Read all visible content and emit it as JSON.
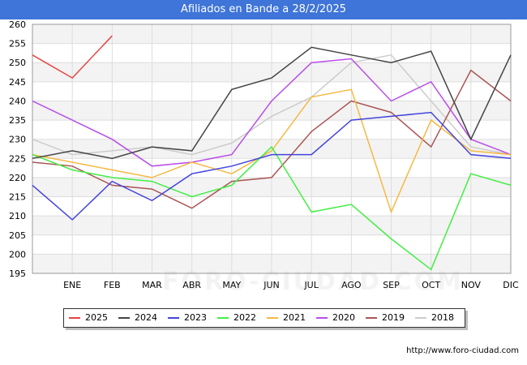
{
  "title": "Afiliados en Bande a 28/2/2025",
  "source": "http://www.foro-ciudad.com",
  "watermark": "FORO-CIUDAD.COM",
  "chart_data": {
    "type": "line",
    "title": "Afiliados en Bande a 28/2/2025",
    "xlabel": "",
    "ylabel": "",
    "categories": [
      "",
      "ENE",
      "FEB",
      "MAR",
      "ABR",
      "MAY",
      "JUN",
      "JUL",
      "AGO",
      "SEP",
      "OCT",
      "NOV",
      "DIC"
    ],
    "ylim": [
      195,
      260
    ],
    "yticks": [
      195,
      200,
      205,
      210,
      215,
      220,
      225,
      230,
      235,
      240,
      245,
      250,
      255,
      260
    ],
    "grid": true,
    "legend_position": "bottom",
    "series": [
      {
        "name": "2025",
        "color": "#e84343",
        "values": [
          252,
          246,
          257,
          null,
          null,
          null,
          null,
          null,
          null,
          null,
          null,
          null,
          null
        ]
      },
      {
        "name": "2024",
        "color": "#444444",
        "values": [
          225,
          227,
          225,
          228,
          227,
          243,
          246,
          254,
          252,
          250,
          253,
          230,
          252
        ]
      },
      {
        "name": "2023",
        "color": "#4444dd",
        "values": [
          218,
          209,
          219,
          214,
          221,
          223,
          226,
          226,
          235,
          236,
          237,
          226,
          225
        ]
      },
      {
        "name": "2022",
        "color": "#44ee44",
        "values": [
          226,
          222,
          220,
          219,
          215,
          218,
          228,
          211,
          213,
          204,
          196,
          221,
          218
        ]
      },
      {
        "name": "2021",
        "color": "#f5b942",
        "values": [
          226,
          224,
          222,
          220,
          224,
          221,
          227,
          241,
          243,
          211,
          235,
          227,
          226
        ]
      },
      {
        "name": "2020",
        "color": "#b94ee8",
        "values": [
          240,
          235,
          230,
          223,
          224,
          226,
          240,
          250,
          251,
          240,
          245,
          230,
          226
        ]
      },
      {
        "name": "2019",
        "color": "#aa5555",
        "values": [
          224,
          223,
          218,
          217,
          212,
          219,
          220,
          232,
          240,
          237,
          228,
          248,
          240
        ]
      },
      {
        "name": "2018",
        "color": "#cccccc",
        "values": [
          230,
          226,
          227,
          228,
          226,
          229,
          236,
          241,
          250,
          252,
          240,
          228,
          226
        ]
      }
    ]
  }
}
